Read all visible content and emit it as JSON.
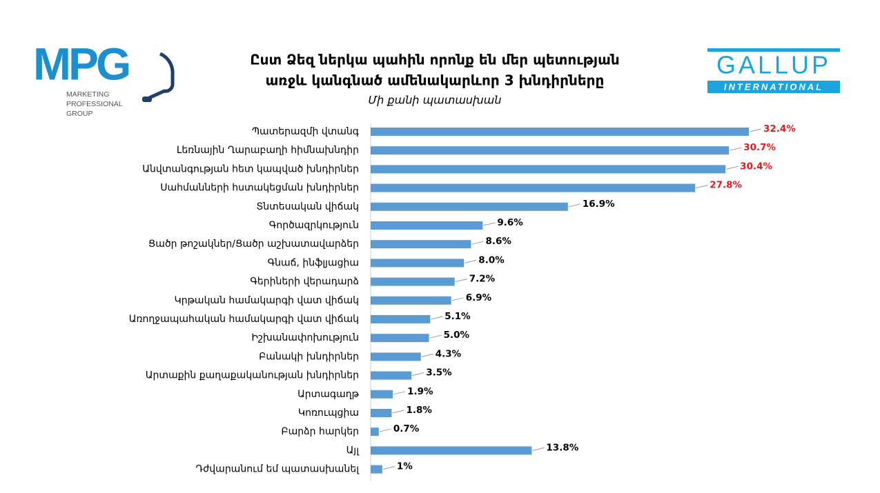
{
  "logos": {
    "left": {
      "mark": "MPG",
      "lines": [
        "MARKETING",
        "PROFESSIONAL",
        "GROUP"
      ]
    },
    "right": {
      "name": "GALLUP",
      "sub": "INTERNATIONAL"
    }
  },
  "chart_data": {
    "type": "hbar",
    "title": [
      "Ըստ Ձեզ ներկա պահին որոնք են մեր պետության",
      "առջև կանգնած ամենակարևոր 3 խնդիրները"
    ],
    "subtitle": "Մի քանի պատասխան",
    "categories": [
      "Պատերազմի վտանգ",
      "Լեռնային Ղարաբաղի հիմնախնդիր",
      "Անվտանգության հետ կապված խնդիրներ",
      "Սահմանների հստակեցման խնդիրներ",
      "Տնտեսական վիճակ",
      "Գործազրկություն",
      "Ցածր թոշակներ/Ցածր աշխատավարձեր",
      "Գնաճ, ինֆլյացիա",
      "Գերիների վերադարձ",
      "Կրթական համակարգի վատ վիճակ",
      "Առողջապահական համակարգի վատ վիճակ",
      "Իշխանափոխություն",
      "Բանակի խնդիրներ",
      "Արտաքին քաղաքականության խնդիրներ",
      "Արտագաղթ",
      "Կոռուպցիա",
      "Բարձր հարկեր",
      "Այլ",
      "Դժվարանում եմ պատասխանել"
    ],
    "values": [
      32.4,
      30.7,
      30.4,
      27.8,
      16.9,
      9.6,
      8.6,
      8.0,
      7.2,
      6.9,
      5.1,
      5.0,
      4.3,
      3.5,
      1.9,
      1.8,
      0.7,
      13.8,
      1
    ],
    "value_labels": [
      "32.4%",
      "30.7%",
      "30.4%",
      "27.8%",
      "16.9%",
      "9.6%",
      "8.6%",
      "8.0%",
      "7.2%",
      "6.9%",
      "5.1%",
      "5.0%",
      "4.3%",
      "3.5%",
      "1.9%",
      "1.8%",
      "0.7%",
      "13.8%",
      "1%"
    ],
    "value_label_colors": [
      "#e3191c",
      "#e3191c",
      "#e3191c",
      "#e3191c",
      "#000000",
      "#000000",
      "#000000",
      "#000000",
      "#000000",
      "#000000",
      "#000000",
      "#000000",
      "#000000",
      "#000000",
      "#000000",
      "#000000",
      "#000000",
      "#000000",
      "#000000"
    ],
    "color": "#5b9bd5"
  }
}
